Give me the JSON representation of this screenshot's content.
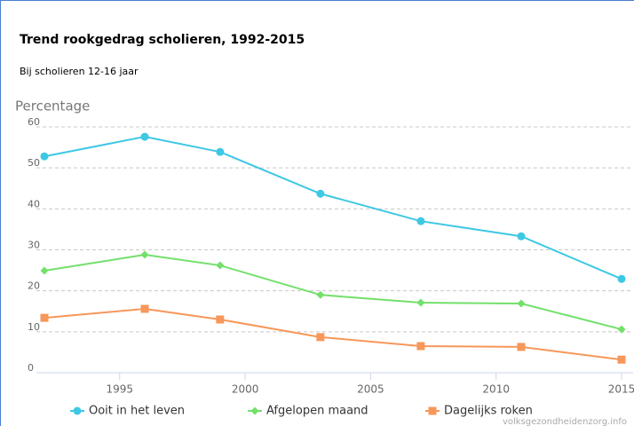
{
  "chart_data": {
    "type": "line",
    "title": "Trend rookgedrag scholieren, 1992-2015",
    "subtitle": "Bij scholieren 12-16 jaar",
    "y_label": "Percentage",
    "credit": "volksgezondheidenzorg.info",
    "x": [
      1992,
      1996,
      1999,
      2003,
      2007,
      2011,
      2015
    ],
    "xlim": [
      1992,
      2015
    ],
    "xticks": [
      1995,
      2000,
      2005,
      2010,
      2015
    ],
    "ylim": [
      0,
      60
    ],
    "yticks": [
      0,
      10,
      20,
      30,
      40,
      50,
      60
    ],
    "grid": true,
    "legend": "bottom",
    "series": [
      {
        "name": "Ooit in het leven",
        "color": "#3ec8e4",
        "marker": "circle",
        "values": [
          52.8,
          57.6,
          53.9,
          43.7,
          37.0,
          33.3,
          22.9
        ]
      },
      {
        "name": "Afgelopen maand",
        "color": "#72e06a",
        "marker": "diamond",
        "values": [
          24.9,
          28.8,
          26.2,
          19.0,
          17.1,
          16.9,
          10.6
        ]
      },
      {
        "name": "Dagelijks roken",
        "color": "#f7975a",
        "marker": "square",
        "values": [
          13.4,
          15.6,
          13.0,
          8.7,
          6.5,
          6.3,
          3.2
        ]
      }
    ]
  }
}
